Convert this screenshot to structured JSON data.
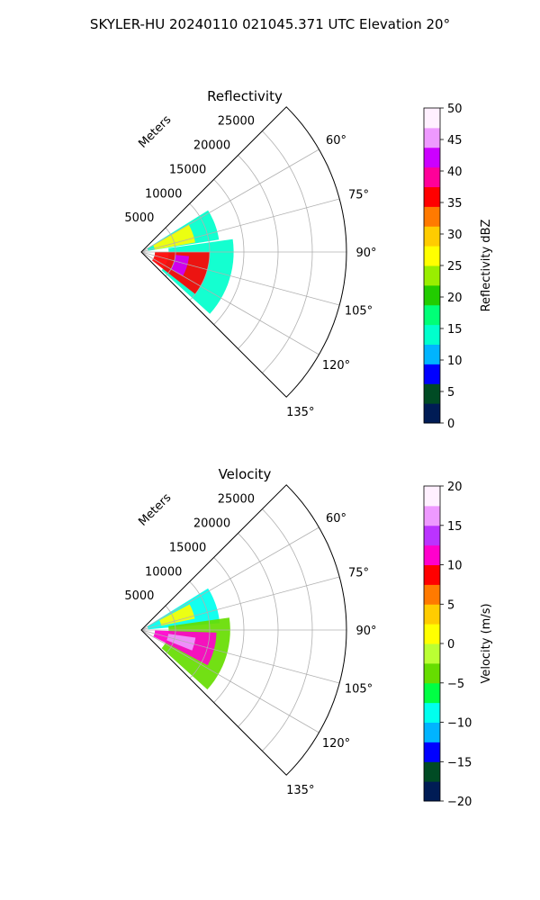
{
  "suptitle": "SKYLER-HU  20240110  021045.371 UTC Elevation 20°",
  "chart_data": [
    {
      "type": "heatmap",
      "title": "Reflectivity",
      "range_axis_label": "Meters",
      "range_ticks": [
        "5000",
        "10000",
        "15000",
        "20000",
        "25000"
      ],
      "range_tick_values": [
        5000,
        10000,
        15000,
        20000,
        25000
      ],
      "range_max_m": 30000,
      "azimuth_ticks": [
        "60°",
        "75°",
        "90°",
        "105°",
        "120°",
        "135°"
      ],
      "azimuth_tick_values": [
        60,
        75,
        90,
        105,
        120,
        135
      ],
      "azimuth_range_deg": [
        45,
        135
      ],
      "grid": true,
      "colorbar": {
        "label": "Reflectivity dBZ",
        "ticks": [
          "0",
          "5",
          "10",
          "15",
          "20",
          "25",
          "30",
          "35",
          "40",
          "45",
          "50"
        ],
        "min": 0,
        "max": 50,
        "colors": [
          "#001c55",
          "#004b24",
          "#0000ff",
          "#00b4ff",
          "#00ffcc",
          "#00ff77",
          "#22cc00",
          "#99ee00",
          "#ffff00",
          "#ffcc00",
          "#ff7a00",
          "#ff0000",
          "#ff0099",
          "#cc00ff",
          "#ee99ff",
          "#fff0ff"
        ]
      },
      "echo_regions": [
        {
          "az_min": 58,
          "az_max": 81,
          "r_min_m": 1000,
          "r_max_m": 11500,
          "level": 15
        },
        {
          "az_min": 82,
          "az_max": 132,
          "r_min_m": 4000,
          "r_max_m": 13500,
          "level": 15
        },
        {
          "az_min": 60,
          "az_max": 80,
          "r_min_m": 2000,
          "r_max_m": 8000,
          "level": 27
        },
        {
          "az_min": 90,
          "az_max": 128,
          "r_min_m": 2000,
          "r_max_m": 10000,
          "level": 36
        },
        {
          "az_min": 95,
          "az_max": 120,
          "r_min_m": 5000,
          "r_max_m": 7000,
          "level": 42
        }
      ]
    },
    {
      "type": "heatmap",
      "title": "Velocity",
      "range_axis_label": "Meters",
      "range_ticks": [
        "5000",
        "10000",
        "15000",
        "20000",
        "25000"
      ],
      "range_tick_values": [
        5000,
        10000,
        15000,
        20000,
        25000
      ],
      "range_max_m": 30000,
      "azimuth_ticks": [
        "60°",
        "75°",
        "90°",
        "105°",
        "120°",
        "135°"
      ],
      "azimuth_tick_values": [
        60,
        75,
        90,
        105,
        120,
        135
      ],
      "azimuth_range_deg": [
        45,
        135
      ],
      "grid": true,
      "colorbar": {
        "label": "Velocity (m/s)",
        "ticks": [
          "−20",
          "−15",
          "−10",
          "−5",
          "0",
          "5",
          "10",
          "15",
          "20"
        ],
        "min": -20,
        "max": 20,
        "colors": [
          "#001c55",
          "#004b24",
          "#0000ff",
          "#00b4ff",
          "#00ffee",
          "#00ff44",
          "#66dd00",
          "#bbff33",
          "#ffff00",
          "#ffcc00",
          "#ff7a00",
          "#ff0000",
          "#ff00cc",
          "#bb33ff",
          "#ee99ff",
          "#fff0ff"
        ]
      },
      "echo_regions": [
        {
          "az_min": 58,
          "az_max": 85,
          "r_min_m": 1000,
          "r_max_m": 11500,
          "level": -8
        },
        {
          "az_min": 62,
          "az_max": 78,
          "r_min_m": 3000,
          "r_max_m": 8000,
          "level": 2
        },
        {
          "az_min": 82,
          "az_max": 132,
          "r_min_m": 4000,
          "r_max_m": 13000,
          "level": -5
        },
        {
          "az_min": 92,
          "az_max": 118,
          "r_min_m": 2000,
          "r_max_m": 11000,
          "level": 11
        },
        {
          "az_min": 98,
          "az_max": 112,
          "r_min_m": 4000,
          "r_max_m": 8000,
          "level": 15
        }
      ]
    }
  ]
}
